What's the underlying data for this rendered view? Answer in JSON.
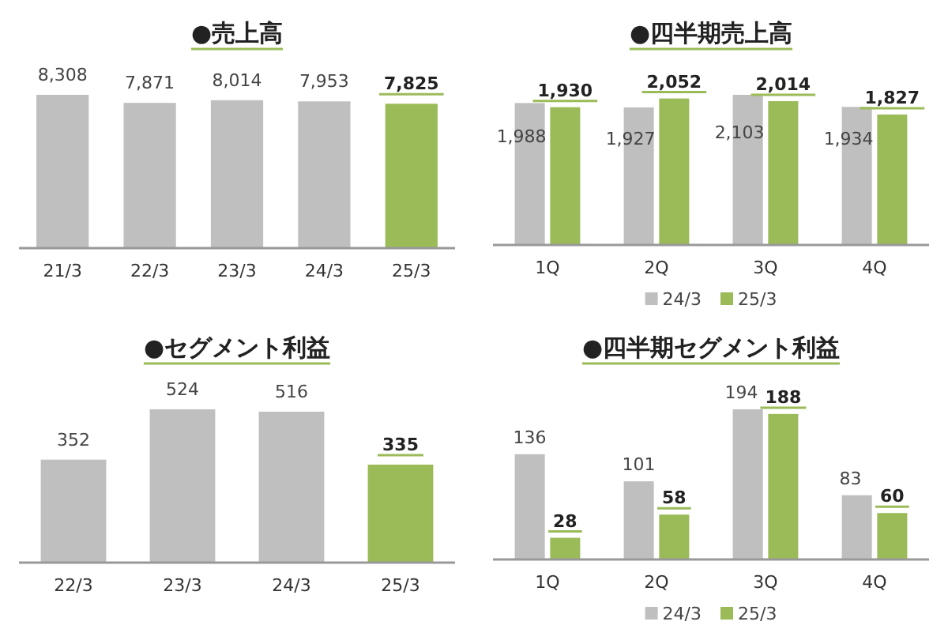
{
  "chart_data": [
    {
      "type": "bar",
      "title": "●売上高",
      "categories": [
        "21/3",
        "22/3",
        "23/3",
        "24/3",
        "25/3"
      ],
      "values": [
        8308,
        7871,
        8014,
        7953,
        7825
      ],
      "value_labels": [
        "8,308",
        "7,871",
        "8,014",
        "7,953",
        "7,825"
      ],
      "colors": [
        "#bfbfbf",
        "#bfbfbf",
        "#bfbfbf",
        "#bfbfbf",
        "#9bbb59"
      ],
      "legend": false
    },
    {
      "type": "bar",
      "title": "●四半期売上高",
      "categories": [
        "1Q",
        "2Q",
        "3Q",
        "4Q"
      ],
      "series": [
        {
          "name": "24/3",
          "color": "#bfbfbf",
          "values": [
            1988,
            1927,
            2103,
            1934
          ],
          "value_labels": [
            "1,988",
            "1,927",
            "2,103",
            "1,934"
          ]
        },
        {
          "name": "25/3",
          "color": "#9bbb59",
          "values": [
            1930,
            2052,
            2014,
            1827
          ],
          "value_labels": [
            "1,930",
            "2,052",
            "2,014",
            "1,827"
          ]
        }
      ],
      "legend": "bottom"
    },
    {
      "type": "bar",
      "title": "●セグメント利益",
      "categories": [
        "22/3",
        "23/3",
        "24/3",
        "25/3"
      ],
      "values": [
        352,
        524,
        516,
        335
      ],
      "colors": [
        "#bfbfbf",
        "#bfbfbf",
        "#bfbfbf",
        "#9bbb59"
      ],
      "data_labels": true,
      "legend": false
    },
    {
      "type": "bar",
      "title": "●四半期セグメント利益",
      "categories": [
        "1Q",
        "2Q",
        "3Q",
        "4Q"
      ],
      "series": [
        {
          "name": "24/3",
          "color": "#bfbfbf",
          "values": [
            136,
            101,
            194,
            83
          ]
        },
        {
          "name": "25/3",
          "color": "#9bbb59",
          "values": [
            28,
            58,
            188,
            60
          ]
        }
      ],
      "data_labels": true,
      "legend": "bottom"
    }
  ]
}
